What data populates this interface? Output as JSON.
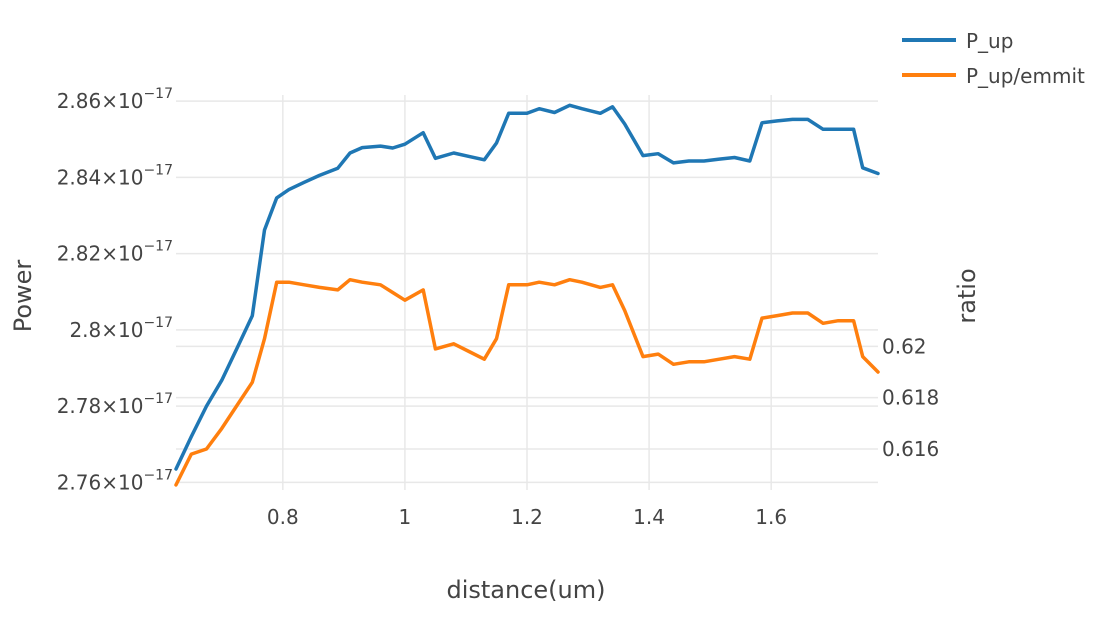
{
  "chart_data": {
    "type": "line",
    "title": "",
    "xlabel": "distance(um)",
    "ylabel": "Power",
    "y2label": "ratio",
    "xlim": [
      0.625,
      1.775
    ],
    "ylim": [
      2.758,
      2.8616
    ],
    "y2lim": [
      0.6144,
      0.6298
    ],
    "x_ticks": [
      {
        "value": 0.8,
        "label": "0.8"
      },
      {
        "value": 1.0,
        "label": "1"
      },
      {
        "value": 1.2,
        "label": "1.2"
      },
      {
        "value": 1.4,
        "label": "1.4"
      },
      {
        "value": 1.6,
        "label": "1.6"
      }
    ],
    "y_ticks": [
      {
        "value": 2.76,
        "mantissa": "2.76",
        "exp": "−17"
      },
      {
        "value": 2.78,
        "mantissa": "2.78",
        "exp": "−17"
      },
      {
        "value": 2.8,
        "mantissa": "2.8",
        "exp": "−17"
      },
      {
        "value": 2.82,
        "mantissa": "2.82",
        "exp": "−17"
      },
      {
        "value": 2.84,
        "mantissa": "2.84",
        "exp": "−17"
      },
      {
        "value": 2.86,
        "mantissa": "2.86",
        "exp": "−17"
      }
    ],
    "y2_ticks": [
      {
        "value": 0.616,
        "label": "0.616"
      },
      {
        "value": 0.618,
        "label": "0.618"
      },
      {
        "value": 0.62,
        "label": "0.62"
      }
    ],
    "times_sign": "×10",
    "legend_position": "top-right",
    "series": [
      {
        "name": "P_up",
        "axis": "y",
        "color": "#1f77b4",
        "x": [
          0.625,
          0.65,
          0.675,
          0.7,
          0.725,
          0.75,
          0.77,
          0.79,
          0.81,
          0.835,
          0.86,
          0.89,
          0.91,
          0.93,
          0.96,
          0.98,
          1.0,
          1.03,
          1.05,
          1.08,
          1.105,
          1.13,
          1.15,
          1.17,
          1.2,
          1.22,
          1.245,
          1.27,
          1.29,
          1.32,
          1.34,
          1.36,
          1.39,
          1.415,
          1.44,
          1.465,
          1.49,
          1.515,
          1.54,
          1.565,
          1.585,
          1.61,
          1.635,
          1.66,
          1.685,
          1.71,
          1.735,
          1.75,
          1.775
        ],
        "y": [
          2.7635,
          2.772,
          2.78,
          2.7868,
          2.7952,
          2.8037,
          2.8262,
          2.8346,
          2.8368,
          2.8387,
          2.8405,
          2.8424,
          2.8464,
          2.8478,
          2.8482,
          2.8477,
          2.8487,
          2.8517,
          2.845,
          2.8464,
          2.8455,
          2.8446,
          2.849,
          2.8568,
          2.8568,
          2.858,
          2.857,
          2.8589,
          2.858,
          2.8568,
          2.8585,
          2.854,
          2.8457,
          2.8462,
          2.8438,
          2.8443,
          2.8443,
          2.8448,
          2.8452,
          2.8443,
          2.8543,
          2.8548,
          2.8552,
          2.8552,
          2.8526,
          2.8526,
          2.8526,
          2.8425,
          2.841
        ]
      },
      {
        "name": "P_up/emmit",
        "axis": "y2",
        "color": "#ff7f0e",
        "x": [
          0.625,
          0.65,
          0.675,
          0.7,
          0.725,
          0.75,
          0.77,
          0.79,
          0.81,
          0.835,
          0.86,
          0.89,
          0.91,
          0.93,
          0.96,
          0.98,
          1.0,
          1.03,
          1.05,
          1.08,
          1.105,
          1.13,
          1.15,
          1.17,
          1.2,
          1.22,
          1.245,
          1.27,
          1.29,
          1.32,
          1.34,
          1.36,
          1.39,
          1.415,
          1.44,
          1.465,
          1.49,
          1.515,
          1.54,
          1.565,
          1.585,
          1.61,
          1.635,
          1.66,
          1.685,
          1.71,
          1.735,
          1.75,
          1.775
        ],
        "y": [
          0.6146,
          0.6158,
          0.616,
          0.6168,
          0.6177,
          0.6186,
          0.6203,
          0.6225,
          0.6225,
          0.6224,
          0.6223,
          0.6222,
          0.6226,
          0.6225,
          0.6224,
          0.6221,
          0.6218,
          0.6222,
          0.6199,
          0.6201,
          0.6198,
          0.6195,
          0.6203,
          0.6224,
          0.6224,
          0.6225,
          0.6224,
          0.6226,
          0.6225,
          0.6223,
          0.6224,
          0.6214,
          0.6196,
          0.6197,
          0.6193,
          0.6194,
          0.6194,
          0.6195,
          0.6196,
          0.6195,
          0.6211,
          0.6212,
          0.6213,
          0.6213,
          0.6209,
          0.621,
          0.621,
          0.6196,
          0.619
        ]
      }
    ]
  }
}
